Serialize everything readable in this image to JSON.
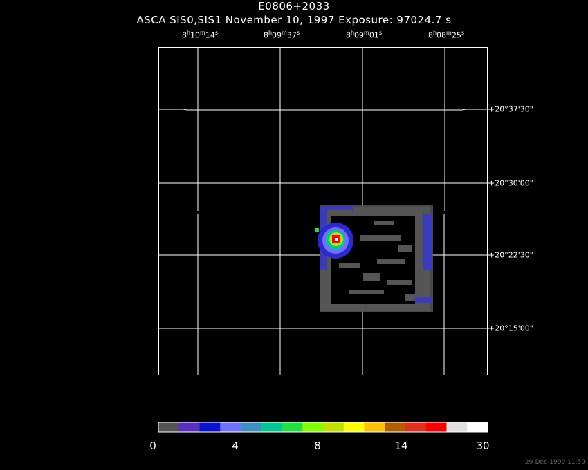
{
  "title": "E0806+2033",
  "subtitle": "ASCA SIS0,SIS1 November 10, 1997 Exposure: 97024.7 s",
  "ra_labels": [
    {
      "h": "8",
      "m": "10",
      "s": "14"
    },
    {
      "h": "8",
      "m": "09",
      "s": "37"
    },
    {
      "h": "8",
      "m": "09",
      "s": "01"
    },
    {
      "h": "8",
      "m": "08",
      "s": "25"
    }
  ],
  "dec_labels": [
    "+20°37'30\"",
    "+20°30'00\"",
    "+20°22'30\"",
    "+20°15'00\""
  ],
  "colorbar": {
    "colors": [
      "#555555",
      "#5a2fbf",
      "#0a14d0",
      "#7070ff",
      "#3a90c0",
      "#00c890",
      "#20e040",
      "#80ff00",
      "#c0e000",
      "#ffff00",
      "#ffc000",
      "#b06000",
      "#e03020",
      "#ff0000",
      "#e0e0e0",
      "#ffffff"
    ],
    "tick_labels": [
      "0",
      "4",
      "8",
      "14",
      "30"
    ]
  },
  "datestamp": "29-Dec-1999 11:59"
}
